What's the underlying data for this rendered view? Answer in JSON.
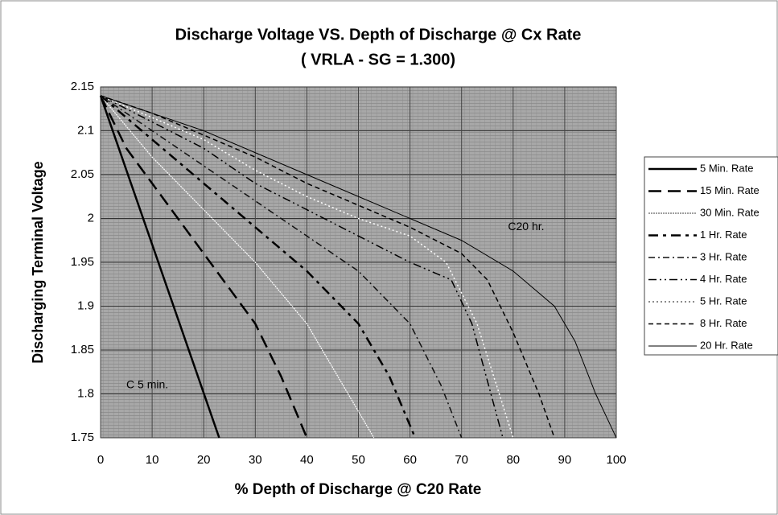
{
  "chart_data": {
    "type": "line",
    "title": "Discharge Voltage VS. Depth of Discharge @ Cx Rate",
    "subtitle": "( VRLA - SG = 1.300)",
    "x_label": "% Depth of Discharge @ C20 Rate",
    "y_label": "Discharging Terminal Voltage",
    "xlim": [
      0,
      100
    ],
    "xticks": [
      0,
      10,
      20,
      30,
      40,
      50,
      60,
      70,
      80,
      90,
      100
    ],
    "ylim": [
      1.75,
      2.15
    ],
    "yticks": [
      1.75,
      1.8,
      1.85,
      1.9,
      1.95,
      2,
      2.05,
      2.1,
      2.15
    ],
    "grid": true,
    "legend": "right",
    "annotations": [
      "C20 hr.",
      "C 5 min."
    ],
    "series": [
      {
        "name": "5 Min. Rate",
        "color": "#000000",
        "dash": "",
        "width": 2.5,
        "x": [
          0,
          23
        ],
        "values": [
          2.14,
          1.75
        ]
      },
      {
        "name": "15 Min. Rate",
        "color": "#000000",
        "dash": "16 8",
        "width": 2.5,
        "x": [
          0,
          5,
          10,
          20,
          30,
          35,
          40
        ],
        "values": [
          2.14,
          2.08,
          2.04,
          1.96,
          1.88,
          1.82,
          1.75
        ]
      },
      {
        "name": "30 Min. Rate",
        "color": "#ffffff",
        "dash": "2 1",
        "width": 1.2,
        "x": [
          0,
          10,
          20,
          30,
          40,
          48,
          53
        ],
        "values": [
          2.14,
          2.07,
          2.01,
          1.95,
          1.88,
          1.8,
          1.75
        ]
      },
      {
        "name": "1 Hr. Rate",
        "color": "#000000",
        "dash": "12 6 4 6",
        "width": 2.5,
        "x": [
          0,
          10,
          20,
          30,
          40,
          50,
          56,
          61
        ],
        "values": [
          2.14,
          2.09,
          2.04,
          1.99,
          1.94,
          1.88,
          1.82,
          1.75
        ]
      },
      {
        "name": "3 Hr. Rate",
        "color": "#111111",
        "dash": "8 4 2 4",
        "width": 1.5,
        "x": [
          0,
          10,
          20,
          30,
          40,
          50,
          60,
          66,
          70
        ],
        "values": [
          2.14,
          2.1,
          2.06,
          2.02,
          1.98,
          1.94,
          1.88,
          1.81,
          1.75
        ]
      },
      {
        "name": "4 Hr. Rate",
        "color": "#000000",
        "dash": "10 4 2 4 2 4",
        "width": 1.5,
        "x": [
          0,
          10,
          20,
          30,
          40,
          50,
          60,
          68,
          72,
          78
        ],
        "values": [
          2.14,
          2.11,
          2.08,
          2.04,
          2.01,
          1.98,
          1.95,
          1.93,
          1.88,
          1.75
        ]
      },
      {
        "name": "5 Hr. Rate",
        "color": "#ffffff",
        "dash": "2 3",
        "width": 1.5,
        "x": [
          0,
          10,
          20,
          30,
          40,
          50,
          60,
          67,
          73,
          80
        ],
        "values": [
          2.14,
          2.115,
          2.09,
          2.055,
          2.025,
          2.0,
          1.98,
          1.95,
          1.88,
          1.75
        ]
      },
      {
        "name": "8 Hr. Rate",
        "color": "#000000",
        "dash": "6 4",
        "width": 1.5,
        "x": [
          0,
          10,
          20,
          30,
          40,
          50,
          60,
          70,
          75,
          80,
          85,
          88
        ],
        "values": [
          2.14,
          2.12,
          2.095,
          2.07,
          2.04,
          2.015,
          1.99,
          1.96,
          1.93,
          1.87,
          1.8,
          1.75
        ]
      },
      {
        "name": "20 Hr. Rate",
        "color": "#000000",
        "dash": "",
        "width": 1,
        "x": [
          0,
          10,
          20,
          30,
          40,
          50,
          60,
          70,
          80,
          88,
          92,
          96,
          100
        ],
        "values": [
          2.14,
          2.12,
          2.1,
          2.075,
          2.05,
          2.025,
          2.0,
          1.975,
          1.94,
          1.9,
          1.86,
          1.8,
          1.75
        ]
      }
    ]
  }
}
